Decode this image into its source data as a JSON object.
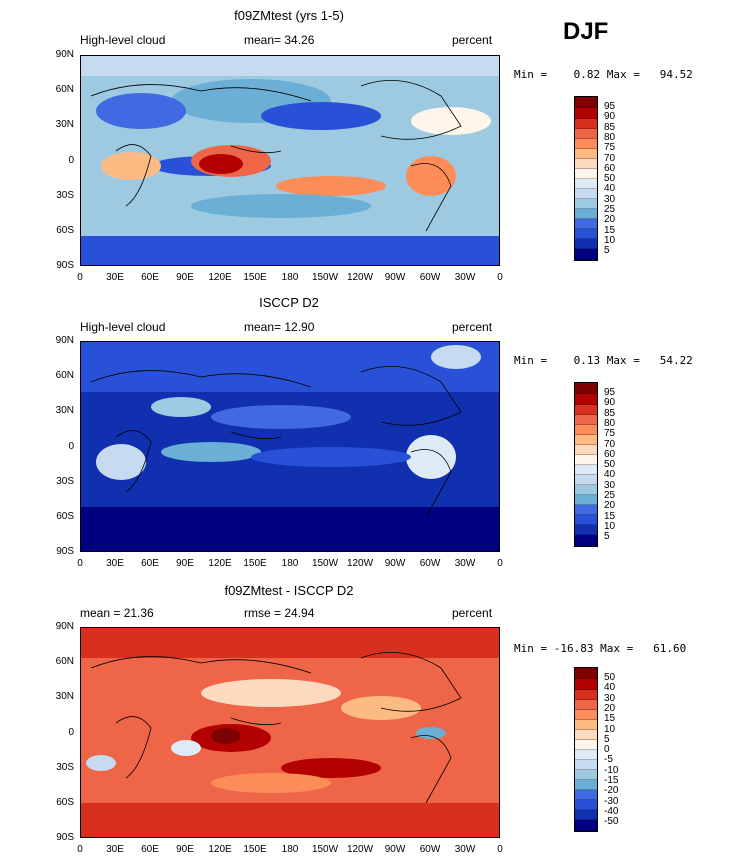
{
  "season": "DJF",
  "panels": [
    {
      "title": "f09ZMtest (yrs 1-5)",
      "left_label": "High-level cloud",
      "mid_label": "mean=  34.26",
      "right_label": "percent",
      "minmax": "Min =    0.82 Max =   94.52",
      "colorbar_labels": [
        "95",
        "90",
        "85",
        "80",
        "75",
        "70",
        "60",
        "50",
        "40",
        "30",
        "25",
        "20",
        "15",
        "10",
        "5"
      ]
    },
    {
      "title": "ISCCP D2",
      "left_label": "High-level cloud",
      "mid_label": "mean=  12.90",
      "right_label": "percent",
      "minmax": "Min =    0.13 Max =   54.22",
      "colorbar_labels": [
        "95",
        "90",
        "85",
        "80",
        "75",
        "70",
        "60",
        "50",
        "40",
        "30",
        "25",
        "20",
        "15",
        "10",
        "5"
      ]
    },
    {
      "title": "f09ZMtest - ISCCP D2",
      "left_label": "mean =  21.36",
      "mid_label": "rmse =  24.94",
      "right_label": "percent",
      "minmax": "Min = -16.83 Max =   61.60",
      "colorbar_labels": [
        "50",
        "40",
        "30",
        "20",
        "15",
        "10",
        "5",
        "0",
        "-5",
        "-10",
        "-15",
        "-20",
        "-30",
        "-40",
        "-50"
      ]
    }
  ],
  "y_ticks": [
    "90N",
    "60N",
    "30N",
    "0",
    "30S",
    "60S",
    "90S"
  ],
  "x_ticks": [
    "0",
    "30E",
    "60E",
    "90E",
    "120E",
    "150E",
    "180",
    "150W",
    "120W",
    "90W",
    "60W",
    "30W",
    "0"
  ],
  "colors": {
    "abs_scale": [
      "#7f0000",
      "#b30000",
      "#d7301f",
      "#ef6548",
      "#fc8d59",
      "#fdbb84",
      "#fdd9c0",
      "#fff5eb",
      "#deebf7",
      "#c6dbef",
      "#9ecae1",
      "#6baed6",
      "#4169e1",
      "#2851d8",
      "#1030b0",
      "#000080"
    ],
    "diff_scale": [
      "#7f0000",
      "#b30000",
      "#d7301f",
      "#ef6548",
      "#fc8d59",
      "#fdbb84",
      "#fdd9c0",
      "#fff5eb",
      "#deebf7",
      "#c6dbef",
      "#9ecae1",
      "#6baed6",
      "#4169e1",
      "#2851d8",
      "#1030b0",
      "#000080"
    ]
  }
}
